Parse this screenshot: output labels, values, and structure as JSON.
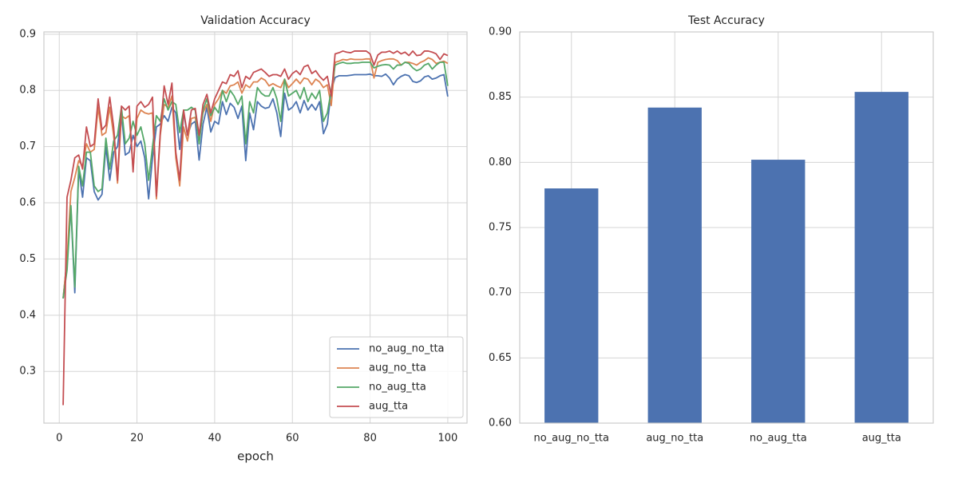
{
  "chart_data": [
    {
      "type": "line",
      "title": "Validation Accuracy",
      "xlabel": "epoch",
      "grid": true,
      "legend_loc": "lower right",
      "x": [
        1,
        2,
        3,
        4,
        5,
        6,
        7,
        8,
        9,
        10,
        11,
        12,
        13,
        14,
        15,
        16,
        17,
        18,
        19,
        20,
        21,
        22,
        23,
        24,
        25,
        26,
        27,
        28,
        29,
        30,
        31,
        32,
        33,
        34,
        35,
        36,
        37,
        38,
        39,
        40,
        41,
        42,
        43,
        44,
        45,
        46,
        47,
        48,
        49,
        50,
        51,
        52,
        53,
        54,
        55,
        56,
        57,
        58,
        59,
        60,
        61,
        62,
        63,
        64,
        65,
        66,
        67,
        68,
        69,
        70,
        71,
        72,
        73,
        74,
        75,
        76,
        77,
        78,
        79,
        80,
        81,
        82,
        83,
        84,
        85,
        86,
        87,
        88,
        89,
        90,
        91,
        92,
        93,
        94,
        95,
        96,
        97,
        98,
        99,
        100
      ],
      "xlim": [
        -3.95,
        104.95
      ],
      "xticks": [
        0,
        20,
        40,
        60,
        80,
        100
      ],
      "ylim": [
        0.208,
        0.904
      ],
      "yticks": [
        0.3,
        0.4,
        0.5,
        0.6,
        0.7,
        0.8,
        0.9
      ],
      "series": [
        {
          "name": "no_aug_no_tta",
          "color": "#4c72b0",
          "values": [
            0.43,
            0.5,
            0.59,
            0.44,
            0.66,
            0.61,
            0.68,
            0.675,
            0.62,
            0.605,
            0.615,
            0.7,
            0.64,
            0.69,
            0.7,
            0.76,
            0.685,
            0.69,
            0.72,
            0.7,
            0.71,
            0.68,
            0.607,
            0.68,
            0.735,
            0.74,
            0.755,
            0.745,
            0.77,
            0.76,
            0.695,
            0.76,
            0.72,
            0.74,
            0.745,
            0.676,
            0.74,
            0.77,
            0.726,
            0.745,
            0.74,
            0.78,
            0.757,
            0.777,
            0.77,
            0.75,
            0.772,
            0.675,
            0.76,
            0.73,
            0.78,
            0.772,
            0.768,
            0.77,
            0.785,
            0.76,
            0.718,
            0.795,
            0.765,
            0.77,
            0.78,
            0.76,
            0.782,
            0.765,
            0.775,
            0.765,
            0.78,
            0.723,
            0.74,
            0.8,
            0.823,
            0.826,
            0.826,
            0.826,
            0.827,
            0.828,
            0.828,
            0.828,
            0.828,
            0.829,
            0.826,
            0.826,
            0.825,
            0.829,
            0.822,
            0.81,
            0.82,
            0.825,
            0.828,
            0.826,
            0.816,
            0.814,
            0.817,
            0.824,
            0.826,
            0.82,
            0.822,
            0.826,
            0.828,
            0.789
          ]
        },
        {
          "name": "aug_no_tta",
          "color": "#dd8452",
          "values": [
            0.43,
            0.5,
            0.62,
            0.645,
            0.675,
            0.665,
            0.705,
            0.69,
            0.695,
            0.77,
            0.72,
            0.725,
            0.77,
            0.72,
            0.635,
            0.755,
            0.75,
            0.755,
            0.66,
            0.75,
            0.765,
            0.76,
            0.758,
            0.76,
            0.607,
            0.72,
            0.775,
            0.77,
            0.79,
            0.68,
            0.63,
            0.735,
            0.71,
            0.75,
            0.752,
            0.715,
            0.76,
            0.775,
            0.745,
            0.775,
            0.785,
            0.8,
            0.795,
            0.808,
            0.81,
            0.815,
            0.795,
            0.81,
            0.805,
            0.815,
            0.815,
            0.822,
            0.818,
            0.808,
            0.812,
            0.808,
            0.805,
            0.82,
            0.805,
            0.812,
            0.82,
            0.812,
            0.822,
            0.82,
            0.81,
            0.82,
            0.815,
            0.805,
            0.81,
            0.773,
            0.85,
            0.852,
            0.855,
            0.854,
            0.856,
            0.855,
            0.855,
            0.855,
            0.856,
            0.856,
            0.822,
            0.85,
            0.853,
            0.855,
            0.856,
            0.856,
            0.853,
            0.845,
            0.85,
            0.85,
            0.848,
            0.845,
            0.85,
            0.853,
            0.858,
            0.855,
            0.848,
            0.85,
            0.852,
            0.848
          ]
        },
        {
          "name": "no_aug_tta",
          "color": "#55a868",
          "values": [
            0.43,
            0.48,
            0.595,
            0.45,
            0.665,
            0.63,
            0.69,
            0.69,
            0.63,
            0.62,
            0.625,
            0.715,
            0.66,
            0.71,
            0.72,
            0.77,
            0.705,
            0.715,
            0.745,
            0.72,
            0.735,
            0.705,
            0.64,
            0.7,
            0.755,
            0.745,
            0.785,
            0.765,
            0.78,
            0.775,
            0.725,
            0.765,
            0.765,
            0.77,
            0.765,
            0.705,
            0.765,
            0.785,
            0.755,
            0.77,
            0.76,
            0.8,
            0.78,
            0.8,
            0.79,
            0.775,
            0.79,
            0.705,
            0.78,
            0.76,
            0.805,
            0.795,
            0.79,
            0.79,
            0.805,
            0.785,
            0.745,
            0.82,
            0.79,
            0.795,
            0.8,
            0.785,
            0.805,
            0.78,
            0.795,
            0.785,
            0.8,
            0.745,
            0.76,
            0.8,
            0.845,
            0.848,
            0.85,
            0.848,
            0.848,
            0.849,
            0.849,
            0.85,
            0.85,
            0.85,
            0.84,
            0.843,
            0.845,
            0.846,
            0.845,
            0.838,
            0.845,
            0.845,
            0.85,
            0.848,
            0.84,
            0.835,
            0.838,
            0.845,
            0.848,
            0.838,
            0.845,
            0.85,
            0.85,
            0.808
          ]
        },
        {
          "name": "aug_tta",
          "color": "#c44e52",
          "values": [
            0.24,
            0.61,
            0.64,
            0.68,
            0.685,
            0.66,
            0.735,
            0.7,
            0.705,
            0.785,
            0.73,
            0.738,
            0.788,
            0.735,
            0.64,
            0.772,
            0.765,
            0.772,
            0.655,
            0.772,
            0.78,
            0.77,
            0.775,
            0.788,
            0.612,
            0.725,
            0.808,
            0.775,
            0.813,
            0.69,
            0.64,
            0.765,
            0.72,
            0.765,
            0.768,
            0.72,
            0.775,
            0.793,
            0.76,
            0.785,
            0.8,
            0.815,
            0.812,
            0.828,
            0.825,
            0.835,
            0.805,
            0.825,
            0.82,
            0.832,
            0.835,
            0.838,
            0.832,
            0.825,
            0.828,
            0.828,
            0.825,
            0.838,
            0.82,
            0.83,
            0.835,
            0.828,
            0.842,
            0.845,
            0.83,
            0.835,
            0.825,
            0.818,
            0.825,
            0.79,
            0.865,
            0.867,
            0.87,
            0.868,
            0.867,
            0.87,
            0.87,
            0.87,
            0.87,
            0.865,
            0.845,
            0.863,
            0.868,
            0.868,
            0.87,
            0.866,
            0.87,
            0.865,
            0.868,
            0.862,
            0.87,
            0.862,
            0.863,
            0.87,
            0.87,
            0.868,
            0.865,
            0.855,
            0.865,
            0.862
          ]
        }
      ]
    },
    {
      "type": "bar",
      "title": "Test Accuracy",
      "grid": true,
      "color": "#4c72b0",
      "categories": [
        "no_aug_no_tta",
        "aug_no_tta",
        "no_aug_tta",
        "aug_tta"
      ],
      "values": [
        0.78,
        0.842,
        0.802,
        0.854
      ],
      "ylim": [
        0.6,
        0.9
      ],
      "yticks": [
        {
          "value": 0.6,
          "label": "0.60"
        },
        0.65,
        {
          "value": 0.7,
          "label": "0.70"
        },
        0.75,
        {
          "value": 0.8,
          "label": "0.80"
        },
        0.85,
        {
          "value": 0.9,
          "label": "0.90"
        }
      ]
    }
  ]
}
